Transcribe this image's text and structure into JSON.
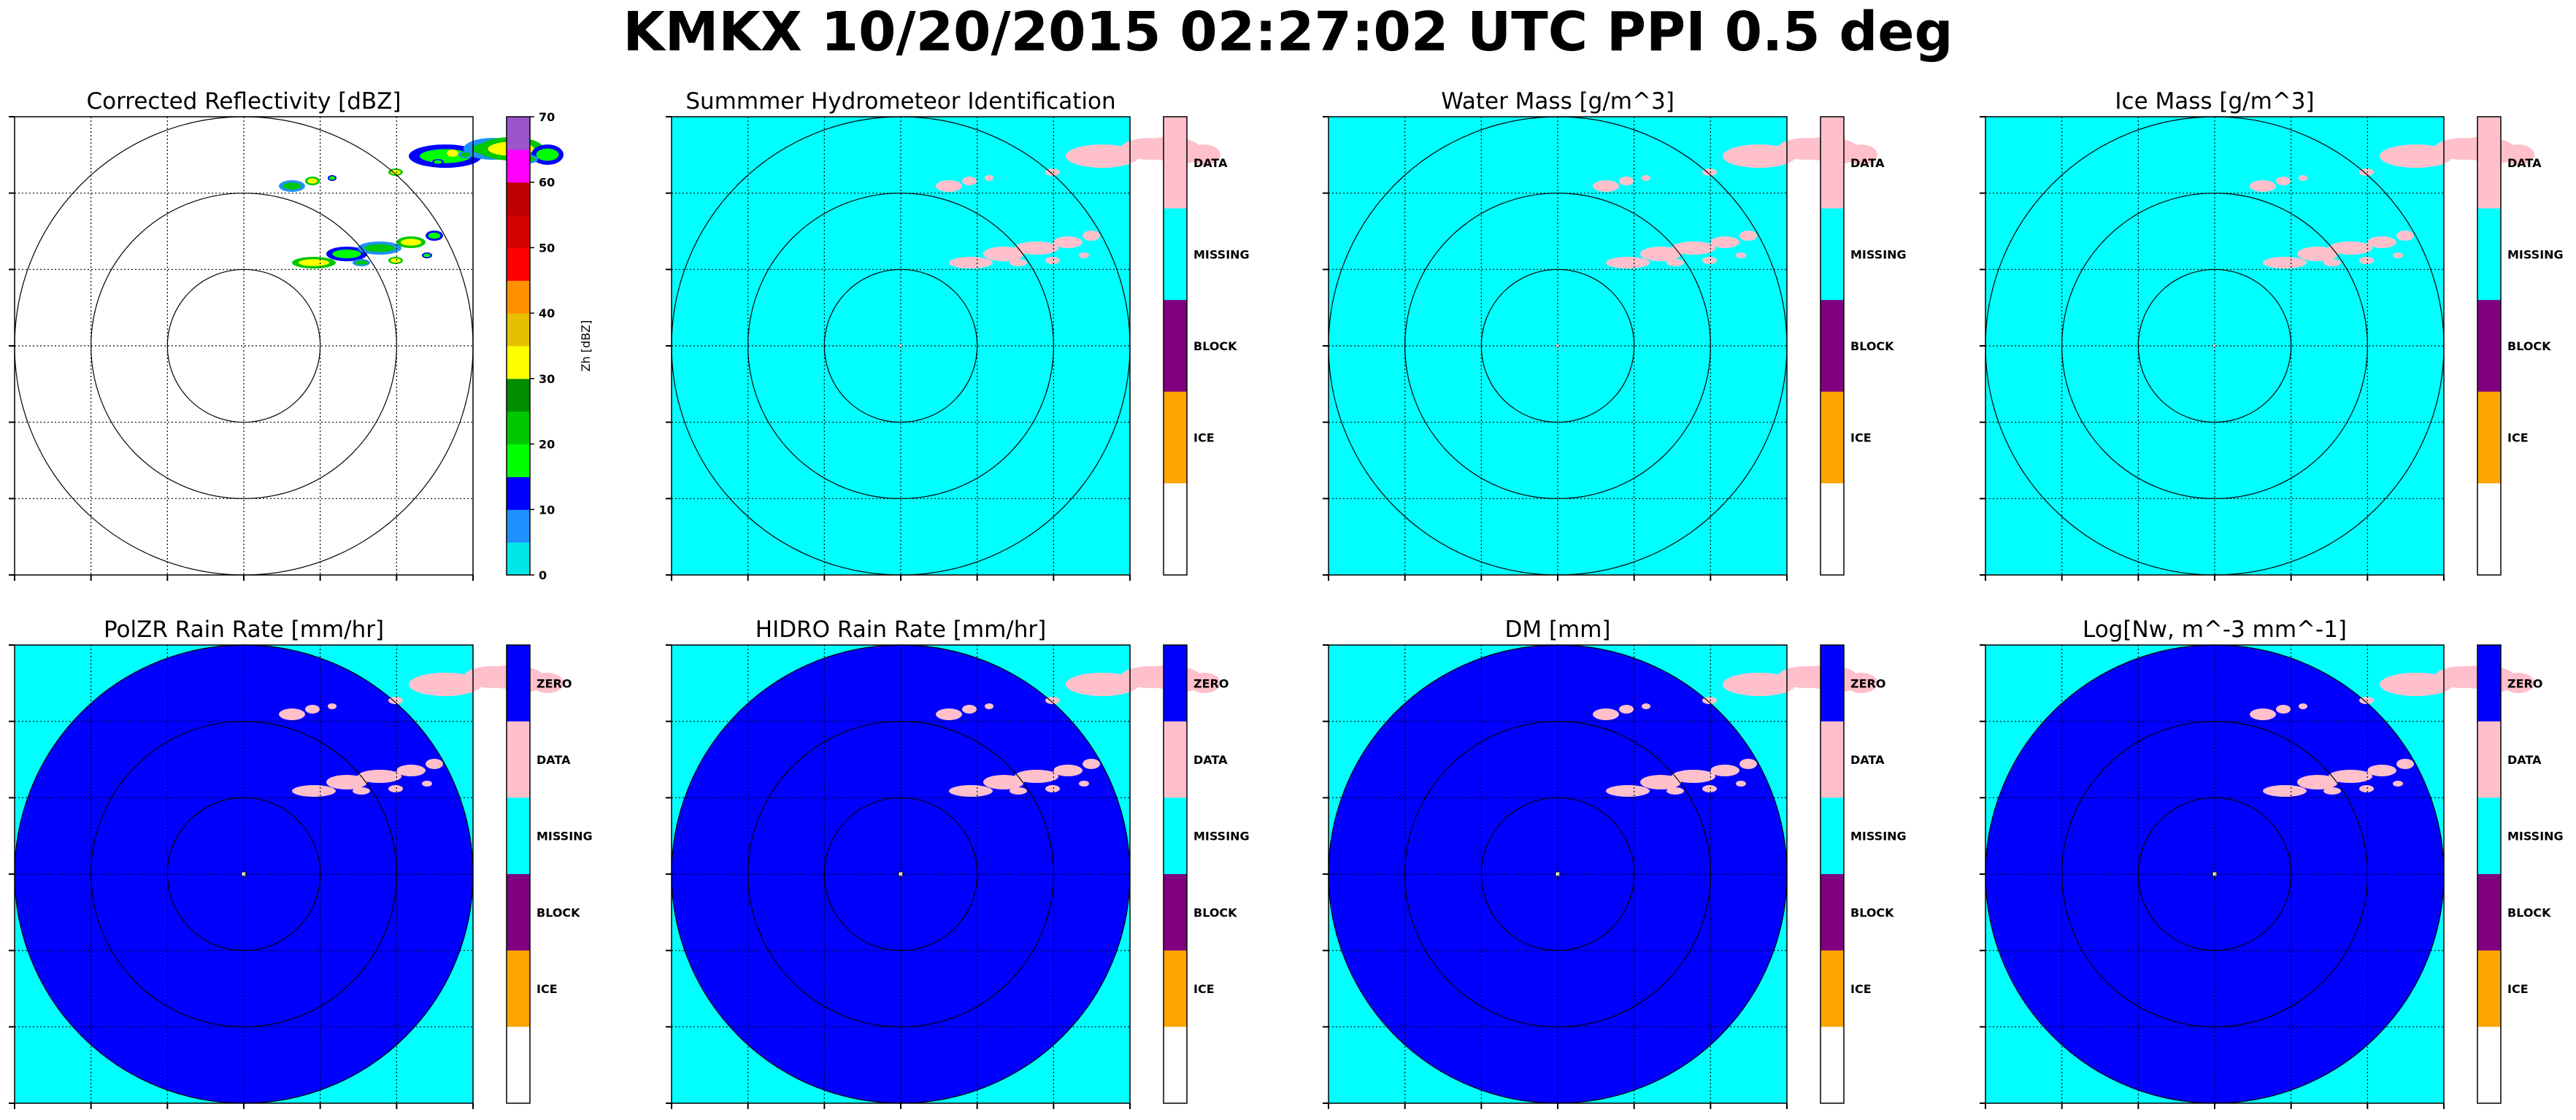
{
  "suptitle": "KMKX 10/20/2015 02:27:02 UTC PPI 0.5 deg",
  "colors": {
    "zero": "#0000ff",
    "data": "#ffc0cb",
    "missing": "#00ffff",
    "block": "#800080",
    "ice": "#ffa500",
    "blank": "#ffffff",
    "range_ring": "#000000",
    "grid": "#000000"
  },
  "chart_data": [
    {
      "type": "heatmap",
      "title": "Corrected Reflectivity [dBZ]",
      "background": "none",
      "colorbar": {
        "kind": "continuous",
        "label": "Zh [dBZ]",
        "ticks": [
          0,
          10,
          20,
          30,
          40,
          50,
          60,
          70
        ],
        "range": [
          0,
          70
        ],
        "colors": [
          "#00e6e6",
          "#1e90ff",
          "#0000ff",
          "#00ff00",
          "#00c800",
          "#008c00",
          "#ffff00",
          "#e6c000",
          "#ff9000",
          "#ff0000",
          "#d40000",
          "#be0000",
          "#ff00ff",
          "#9955c9"
        ]
      },
      "range_rings": 3,
      "echo": "reflectivity"
    },
    {
      "type": "heatmap",
      "title": "Summmer Hydrometeor Identification",
      "background": "missing",
      "colorbar": {
        "kind": "categorical",
        "categories": [
          "DATA",
          "MISSING",
          "BLOCK",
          "ICE",
          ""
        ]
      },
      "range_rings": 3,
      "echo": "data"
    },
    {
      "type": "heatmap",
      "title": "Water Mass [g/m^3]",
      "background": "missing",
      "colorbar": {
        "kind": "categorical",
        "categories": [
          "DATA",
          "MISSING",
          "BLOCK",
          "ICE",
          ""
        ]
      },
      "range_rings": 3,
      "echo": "data"
    },
    {
      "type": "heatmap",
      "title": "Ice Mass [g/m^3]",
      "background": "missing",
      "colorbar": {
        "kind": "categorical",
        "categories": [
          "DATA",
          "MISSING",
          "BLOCK",
          "ICE",
          ""
        ]
      },
      "range_rings": 3,
      "echo": "data"
    },
    {
      "type": "heatmap",
      "title": "PolZR Rain Rate [mm/hr]",
      "background": "missing",
      "disk": "zero",
      "colorbar": {
        "kind": "categorical",
        "categories": [
          "ZERO",
          "DATA",
          "MISSING",
          "BLOCK",
          "ICE",
          ""
        ]
      },
      "range_rings": 3,
      "echo": "data"
    },
    {
      "type": "heatmap",
      "title": "HIDRO Rain Rate [mm/hr]",
      "background": "missing",
      "disk": "zero",
      "colorbar": {
        "kind": "categorical",
        "categories": [
          "ZERO",
          "DATA",
          "MISSING",
          "BLOCK",
          "ICE",
          ""
        ]
      },
      "range_rings": 3,
      "echo": "data"
    },
    {
      "type": "heatmap",
      "title": "DM [mm]",
      "background": "missing",
      "disk": "zero",
      "colorbar": {
        "kind": "categorical",
        "categories": [
          "ZERO",
          "DATA",
          "MISSING",
          "BLOCK",
          "ICE",
          ""
        ]
      },
      "range_rings": 3,
      "echo": "data"
    },
    {
      "type": "heatmap",
      "title": "Log[Nw, m^-3 mm^-1]",
      "background": "missing",
      "disk": "zero",
      "colorbar": {
        "kind": "categorical",
        "categories": [
          "ZERO",
          "DATA",
          "MISSING",
          "BLOCK",
          "ICE",
          ""
        ]
      },
      "range_rings": 3,
      "echo": "data"
    }
  ]
}
